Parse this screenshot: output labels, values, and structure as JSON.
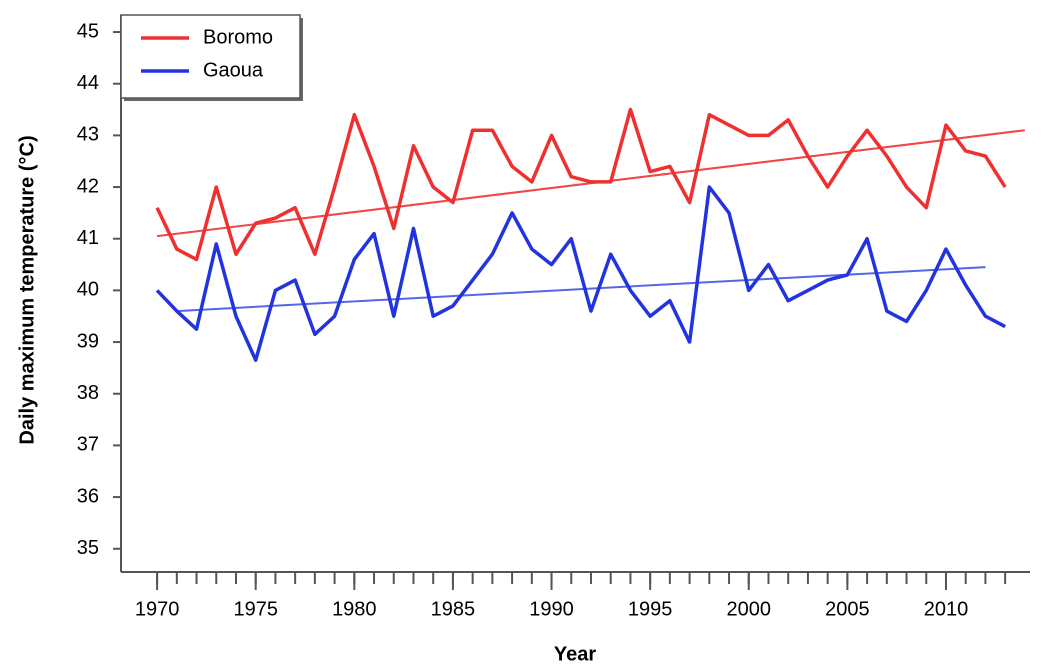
{
  "chart_data": {
    "type": "line",
    "x_label": "Year",
    "y_label": "Daily maximum temperature (°C)",
    "x": [
      1970,
      1971,
      1972,
      1973,
      1974,
      1975,
      1976,
      1977,
      1978,
      1979,
      1980,
      1981,
      1982,
      1983,
      1984,
      1985,
      1986,
      1987,
      1988,
      1989,
      1990,
      1991,
      1992,
      1993,
      1994,
      1995,
      1996,
      1997,
      1998,
      1999,
      2000,
      2001,
      2002,
      2003,
      2004,
      2005,
      2006,
      2007,
      2008,
      2009,
      2010,
      2011,
      2012,
      2013
    ],
    "series": [
      {
        "name": "Boromo",
        "color": "#f03030",
        "values": [
          41.6,
          40.8,
          40.6,
          42.0,
          40.7,
          41.3,
          41.4,
          41.6,
          40.7,
          42.0,
          43.4,
          42.4,
          41.2,
          42.8,
          42.0,
          41.7,
          43.1,
          43.1,
          42.4,
          42.1,
          43.0,
          42.2,
          42.1,
          42.1,
          43.5,
          42.3,
          42.4,
          41.7,
          43.4,
          43.2,
          43.0,
          43.0,
          43.3,
          42.6,
          42.0,
          42.6,
          43.1,
          42.6,
          42.0,
          41.6,
          43.2,
          42.7,
          42.6,
          42.0
        ]
      },
      {
        "name": "Gaoua",
        "color": "#2233e0",
        "values": [
          40.0,
          39.6,
          39.25,
          40.9,
          39.5,
          38.65,
          40.0,
          40.2,
          39.15,
          39.5,
          40.6,
          41.1,
          39.5,
          41.2,
          39.5,
          39.7,
          40.2,
          40.7,
          41.5,
          40.8,
          40.5,
          41.0,
          39.6,
          40.7,
          40.0,
          39.5,
          39.8,
          39.0,
          42.0,
          41.5,
          40.0,
          40.5,
          39.8,
          40.0,
          40.2,
          40.3,
          41.0,
          39.6,
          39.4,
          40.0,
          40.8,
          40.1,
          39.5,
          39.3
        ]
      }
    ],
    "trend_lines": [
      {
        "color": "#f04848",
        "x": [
          1970,
          2014
        ],
        "values": [
          41.05,
          43.1
        ]
      },
      {
        "color": "#5565e8",
        "x": [
          1971,
          2012
        ],
        "values": [
          39.6,
          40.45
        ]
      }
    ],
    "xlim": [
      1968.17,
      2014.26
    ],
    "ylim": [
      34.55,
      45.33
    ],
    "xticks": [
      1970,
      1975,
      1980,
      1985,
      1990,
      1995,
      2000,
      2005,
      2010
    ],
    "yticks": [
      35,
      36,
      37,
      38,
      39,
      40,
      41,
      42,
      43,
      44,
      45
    ],
    "legend": "upper left"
  }
}
